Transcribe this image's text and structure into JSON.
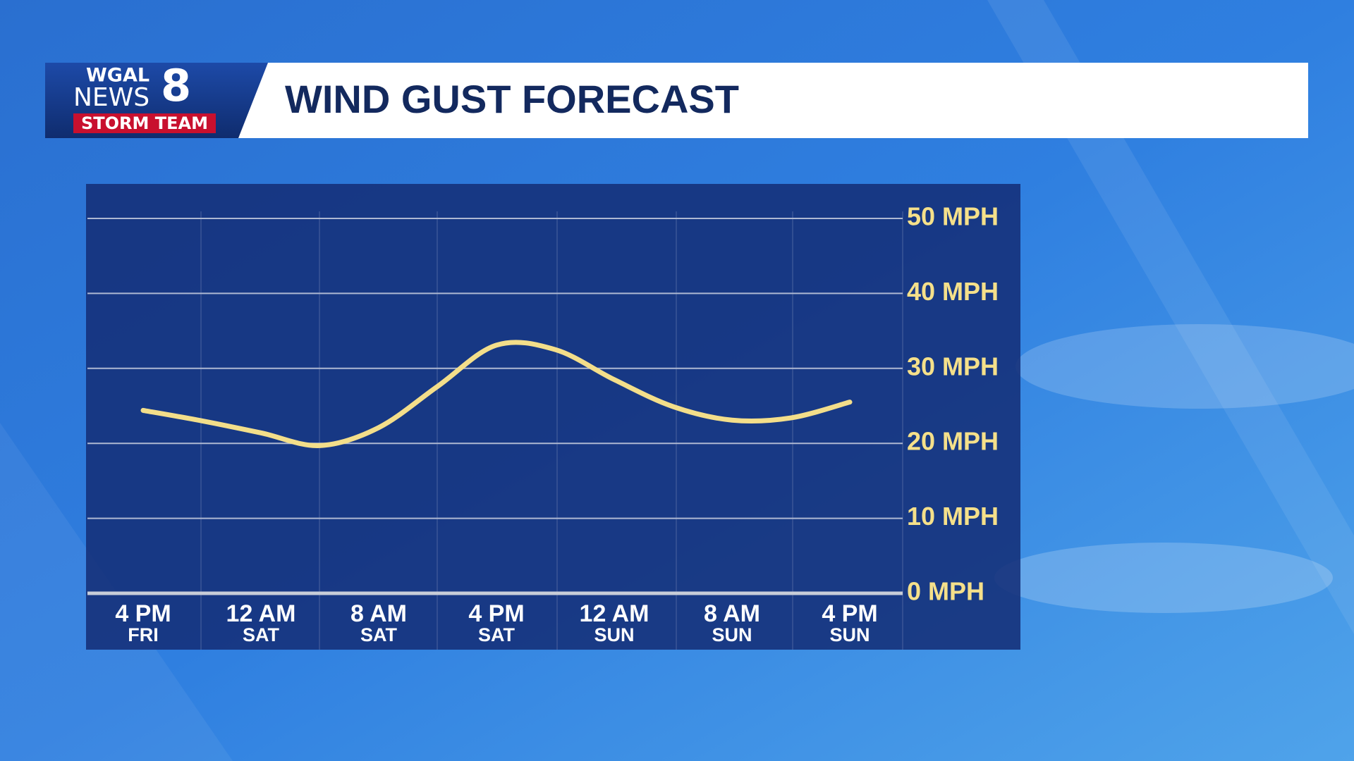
{
  "logo": {
    "line1": "WGAL",
    "line2": "NEWS",
    "number": "8",
    "team": "STORM TEAM"
  },
  "chart_data": {
    "type": "line",
    "title": "WIND GUST FORECAST",
    "categories": [
      "4 PM",
      null,
      "12 AM",
      null,
      "8 AM",
      null,
      "4 PM",
      null,
      "12 AM",
      null,
      "8 AM",
      null,
      "4 PM"
    ],
    "days": [
      "FRI",
      null,
      "SAT",
      null,
      "SAT",
      null,
      "SAT",
      null,
      "SUN",
      null,
      "SUN",
      null,
      "SUN"
    ],
    "values": [
      24.4,
      23.0,
      21.4,
      19.7,
      22.1,
      27.6,
      33.1,
      32.5,
      28.5,
      24.9,
      23.1,
      23.4,
      25.5
    ],
    "color": "#f3de8a",
    "ylim": [
      0,
      50
    ],
    "yticks": [
      {
        "value": 0,
        "label": "0 MPH"
      },
      {
        "value": 10,
        "label": "10 MPH"
      },
      {
        "value": 20,
        "label": "20 MPH"
      },
      {
        "value": 30,
        "label": "30 MPH"
      },
      {
        "value": 40,
        "label": "40 MPH"
      },
      {
        "value": 50,
        "label": "50 MPH"
      }
    ],
    "grid": true
  }
}
